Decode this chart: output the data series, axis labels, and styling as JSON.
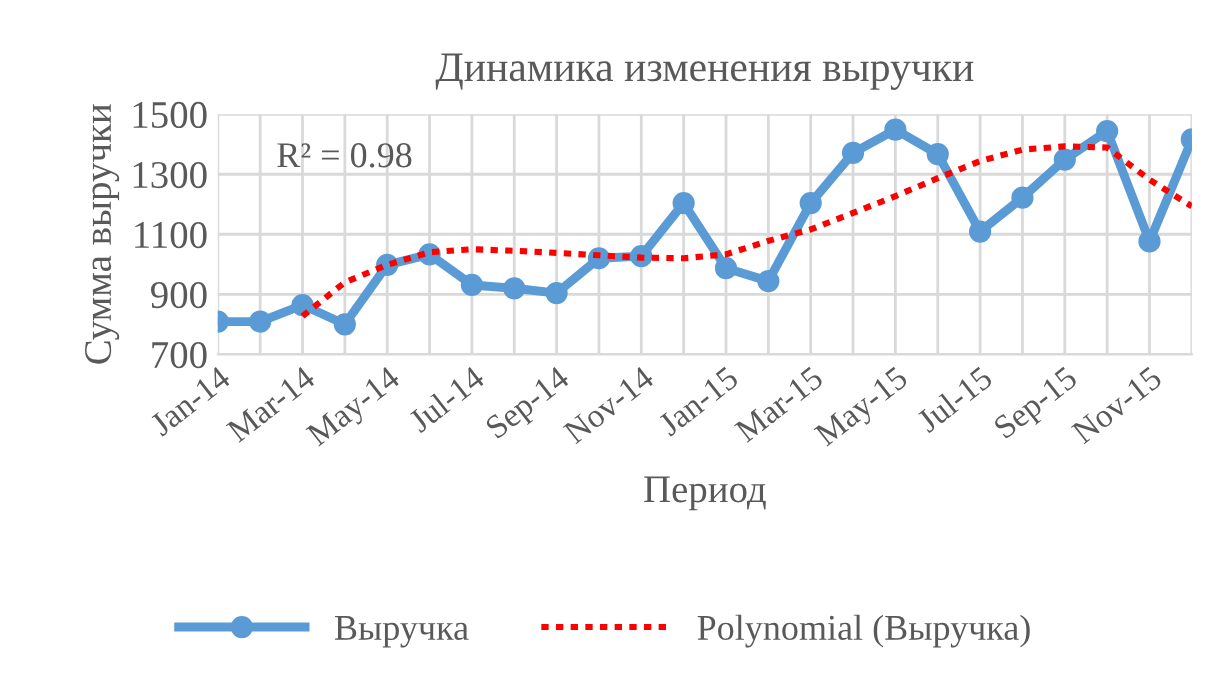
{
  "chart_data": {
    "type": "line",
    "title": "Динамика изменения выручки",
    "xlabel": "Период",
    "ylabel": "Сумма выручки",
    "categories": [
      "Jan-14",
      null,
      "Mar-14",
      null,
      "May-14",
      null,
      "Jul-14",
      null,
      "Sep-14",
      null,
      "Nov-14",
      null,
      "Jan-15",
      null,
      "Mar-15",
      null,
      "May-15",
      null,
      "Jul-15",
      null,
      "Sep-15",
      null,
      "Nov-15",
      null
    ],
    "series": [
      {
        "name": "Выручка",
        "color": "#5b9bd5",
        "marker": "circle",
        "line_style": "solid",
        "values": [
          809,
          809,
          864,
          800,
          998,
          1033,
          931,
          920,
          904,
          1020,
          1027,
          1204,
          987,
          944,
          1204,
          1371,
          1449,
          1367,
          1109,
          1222,
          1349,
          1444,
          1076,
          1416
        ]
      },
      {
        "name": "Polynomial (Выручка)",
        "color": "#ff0000",
        "marker": "none",
        "line_style": "dotted",
        "values": [
          null,
          null,
          827,
          940,
          998,
          1040,
          1050,
          1045,
          1038,
          1030,
          1022,
          1020,
          1033,
          1078,
          1116,
          1171,
          1227,
          1287,
          1344,
          1382,
          1393,
          1389,
          1282,
          1193
        ]
      }
    ],
    "ylim": [
      700,
      1500
    ],
    "yticks": [
      700,
      900,
      1100,
      1300,
      1500
    ],
    "grid": true,
    "legend": "bottom",
    "annotations": [
      "R² = 0.98"
    ]
  }
}
